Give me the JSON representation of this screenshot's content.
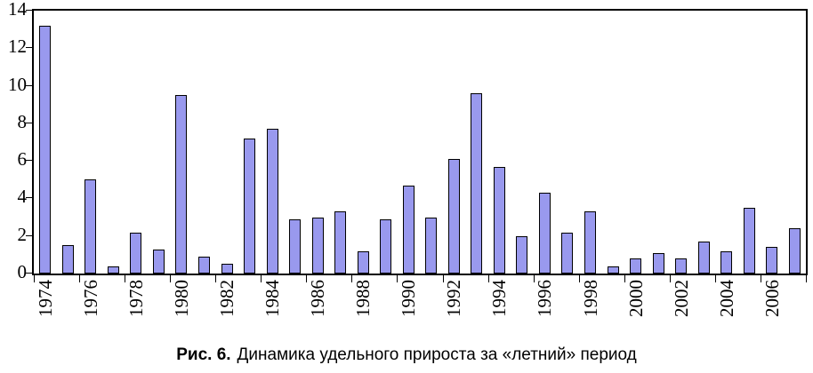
{
  "chart_data": {
    "type": "bar",
    "title": "",
    "xlabel": "",
    "ylabel": "",
    "categories": [
      "1974",
      "1975",
      "1976",
      "1977",
      "1978",
      "1979",
      "1980",
      "1981",
      "1982",
      "1983",
      "1984",
      "1985",
      "1986",
      "1987",
      "1988",
      "1989",
      "1990",
      "1991",
      "1992",
      "1993",
      "1994",
      "1995",
      "1996",
      "1997",
      "1998",
      "1999",
      "2000",
      "2001",
      "2002",
      "2003",
      "2004",
      "2005",
      "2006",
      "2007"
    ],
    "values": [
      13.2,
      1.5,
      5.0,
      0.4,
      2.2,
      1.3,
      9.5,
      0.9,
      0.5,
      7.2,
      7.7,
      2.9,
      3.0,
      3.3,
      1.2,
      2.9,
      4.7,
      3.0,
      6.1,
      9.6,
      5.7,
      2.0,
      4.3,
      2.2,
      3.3,
      0.4,
      0.8,
      1.1,
      0.8,
      1.7,
      1.2,
      3.5,
      1.4,
      2.4
    ],
    "ylim": [
      0,
      14
    ],
    "yticks": [
      0,
      2,
      4,
      6,
      8,
      10,
      12,
      14
    ],
    "xtick_labels_visible": [
      "1974",
      "1976",
      "1978",
      "1980",
      "1982",
      "1984",
      "1986",
      "1988",
      "1990",
      "1992",
      "1994",
      "1996",
      "1998",
      "2000",
      "2002",
      "2004",
      "2006"
    ],
    "grid": false,
    "legend": "none",
    "bar_fill": "#9999ee",
    "bar_border": "#000000"
  },
  "caption": {
    "prefix": "Рис. 6.",
    "text": "Динамика удельного прироста за «летний» период"
  }
}
